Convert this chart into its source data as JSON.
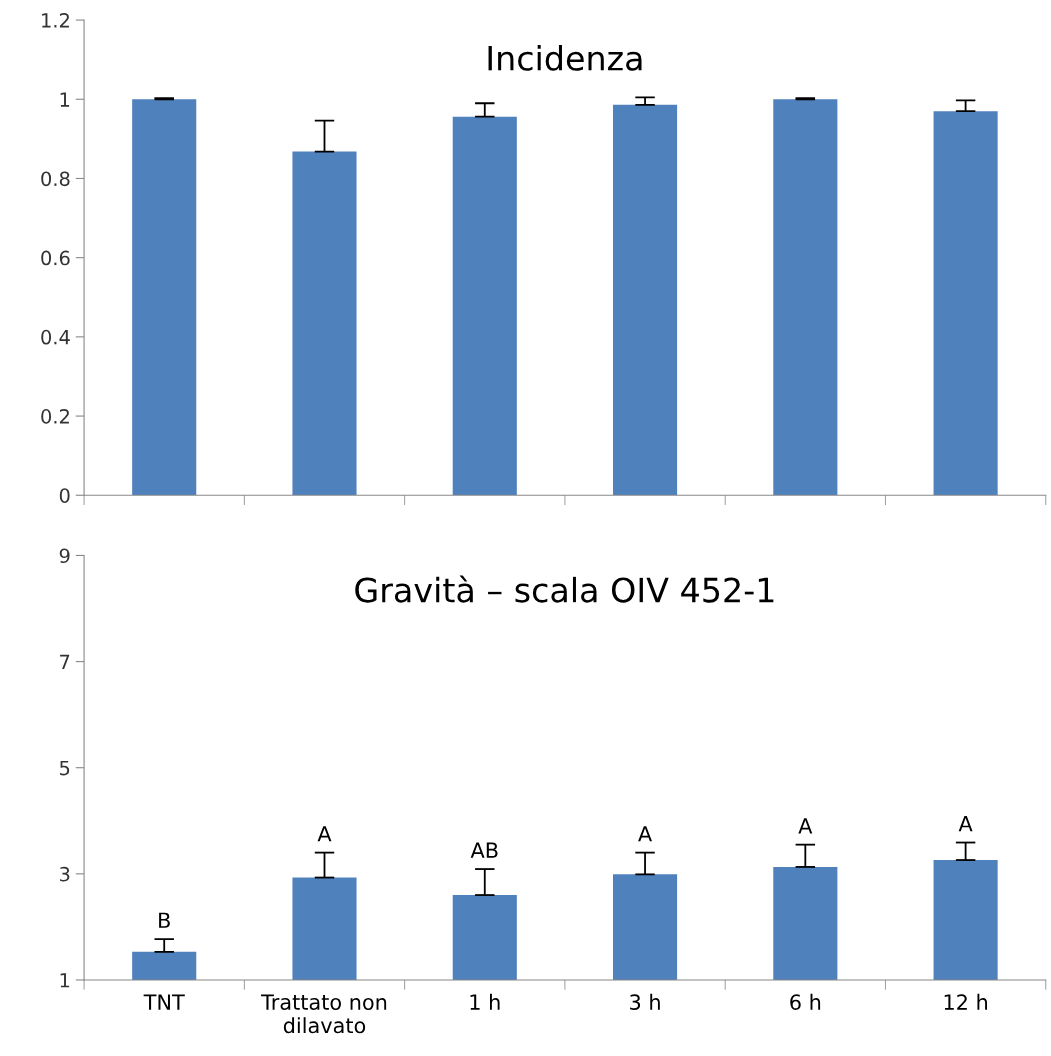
{
  "chart_data": [
    {
      "type": "bar",
      "title": "Incidenza",
      "categories": [
        null,
        null,
        null,
        null,
        null,
        null
      ],
      "color": "#4f81bd",
      "values": [
        1.0,
        0.868,
        0.956,
        0.986,
        1.0,
        0.97
      ],
      "errors": [
        [
          1.0,
          1.003
        ],
        [
          0.868,
          0.946
        ],
        [
          0.956,
          0.99
        ],
        [
          0.986,
          1.005
        ],
        [
          1.0,
          1.003
        ],
        [
          0.97,
          0.997
        ]
      ],
      "ylim": [
        0,
        1.2
      ],
      "yticks": [
        0,
        0.2,
        0.4,
        0.6,
        0.8,
        1,
        1.2
      ],
      "tick_labels": "y",
      "grid": false,
      "legend": false
    },
    {
      "type": "bar",
      "title": "Gravità – scala OIV 452-1",
      "categories": [
        "TNT",
        "Trattato non\ndilavato",
        "1 h",
        "3 h",
        "6 h",
        "12 h"
      ],
      "color": "#4f81bd",
      "values": [
        1.53,
        2.93,
        2.6,
        2.99,
        3.13,
        3.26
      ],
      "errors": [
        [
          1.53,
          1.77
        ],
        [
          2.93,
          3.4
        ],
        [
          2.6,
          3.09
        ],
        [
          2.99,
          3.4
        ],
        [
          3.13,
          3.55
        ],
        [
          3.26,
          3.59
        ]
      ],
      "ylim": [
        1,
        9
      ],
      "yticks": [
        1,
        3,
        5,
        7,
        9
      ],
      "grid": false,
      "legend": false,
      "annotations": [
        "B",
        "A",
        "AB",
        "A",
        "A",
        "A"
      ]
    }
  ]
}
